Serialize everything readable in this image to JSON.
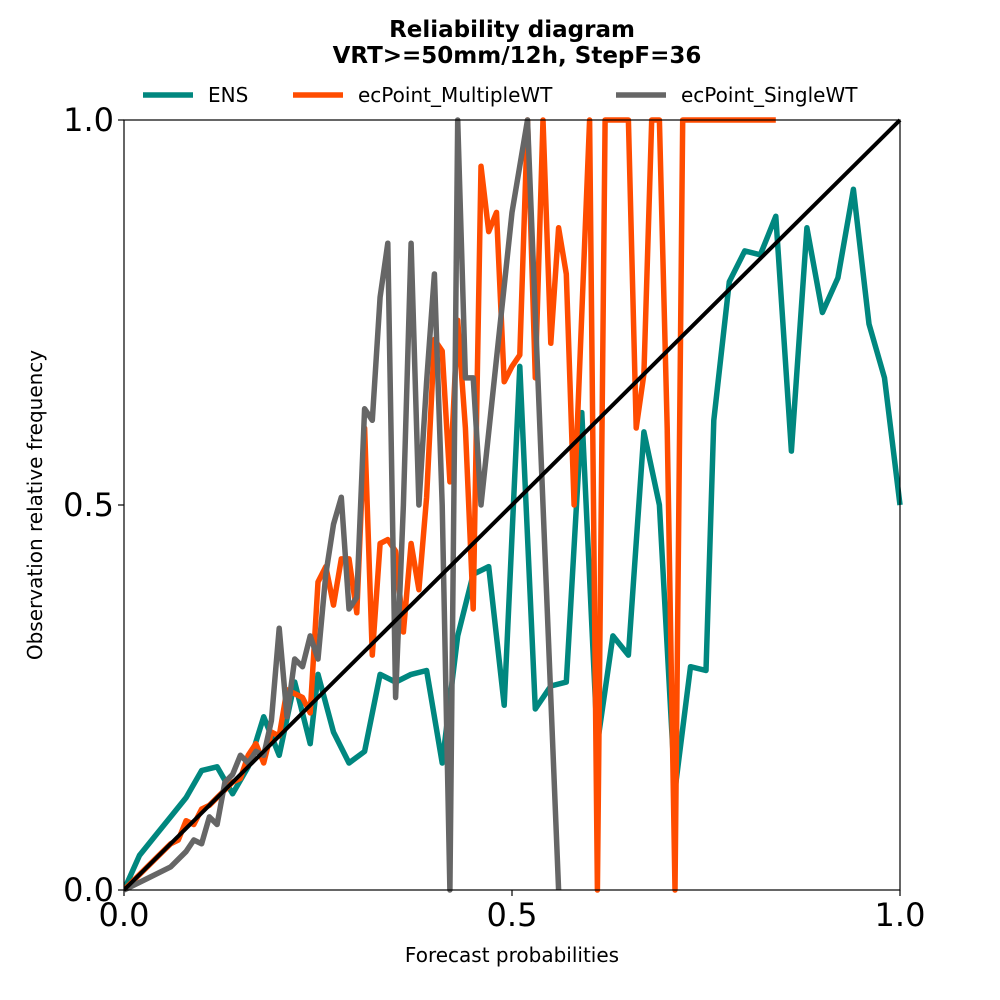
{
  "chart_data": {
    "type": "line",
    "title": "Reliability diagram",
    "subtitle": "VRT>=50mm/12h, StepF=36",
    "xlabel": "Forecast probabilities",
    "ylabel": "Observation relative frequency",
    "xlim": [
      0,
      1
    ],
    "ylim": [
      0,
      1
    ],
    "xticks": [
      "0.0",
      "0.5",
      "1.0"
    ],
    "yticks": [
      "0.0",
      "0.5",
      "1.0"
    ],
    "grid": false,
    "legend_position": "top-center",
    "diagonal": {
      "color": "#000000",
      "from": [
        0,
        0
      ],
      "to": [
        1,
        1
      ]
    },
    "series": [
      {
        "name": "ENS",
        "color": "#00877f",
        "points": [
          [
            0,
            0
          ],
          [
            0.02,
            0.045
          ],
          [
            0.04,
            0.07
          ],
          [
            0.06,
            0.095
          ],
          [
            0.08,
            0.12
          ],
          [
            0.1,
            0.155
          ],
          [
            0.12,
            0.16
          ],
          [
            0.14,
            0.125
          ],
          [
            0.16,
            0.16
          ],
          [
            0.18,
            0.225
          ],
          [
            0.2,
            0.175
          ],
          [
            0.22,
            0.27
          ],
          [
            0.24,
            0.19
          ],
          [
            0.25,
            0.28
          ],
          [
            0.27,
            0.205
          ],
          [
            0.29,
            0.165
          ],
          [
            0.31,
            0.18
          ],
          [
            0.33,
            0.28
          ],
          [
            0.35,
            0.27
          ],
          [
            0.37,
            0.28
          ],
          [
            0.39,
            0.285
          ],
          [
            0.41,
            0.165
          ],
          [
            0.43,
            0.33
          ],
          [
            0.45,
            0.41
          ],
          [
            0.47,
            0.42
          ],
          [
            0.49,
            0.24
          ],
          [
            0.51,
            0.68
          ],
          [
            0.53,
            0.235
          ],
          [
            0.55,
            0.265
          ],
          [
            0.57,
            0.27
          ],
          [
            0.59,
            0.62
          ],
          [
            0.61,
            0.19
          ],
          [
            0.63,
            0.33
          ],
          [
            0.65,
            0.305
          ],
          [
            0.67,
            0.595
          ],
          [
            0.69,
            0.5
          ],
          [
            0.71,
            0.13
          ],
          [
            0.73,
            0.29
          ],
          [
            0.75,
            0.285
          ],
          [
            0.76,
            0.61
          ],
          [
            0.78,
            0.79
          ],
          [
            0.8,
            0.83
          ],
          [
            0.82,
            0.825
          ],
          [
            0.84,
            0.875
          ],
          [
            0.86,
            0.57
          ],
          [
            0.88,
            0.86
          ],
          [
            0.9,
            0.75
          ],
          [
            0.92,
            0.795
          ],
          [
            0.94,
            0.91
          ],
          [
            0.96,
            0.735
          ],
          [
            0.98,
            0.665
          ],
          [
            1.0,
            0.5
          ]
        ]
      },
      {
        "name": "ecPoint_MultipleWT",
        "color": "#ff4c00",
        "points": [
          [
            0,
            0
          ],
          [
            0.02,
            0.02
          ],
          [
            0.04,
            0.04
          ],
          [
            0.06,
            0.06
          ],
          [
            0.07,
            0.065
          ],
          [
            0.08,
            0.09
          ],
          [
            0.09,
            0.085
          ],
          [
            0.1,
            0.105
          ],
          [
            0.11,
            0.11
          ],
          [
            0.12,
            0.12
          ],
          [
            0.13,
            0.13
          ],
          [
            0.14,
            0.14
          ],
          [
            0.15,
            0.145
          ],
          [
            0.16,
            0.175
          ],
          [
            0.17,
            0.19
          ],
          [
            0.18,
            0.165
          ],
          [
            0.19,
            0.205
          ],
          [
            0.2,
            0.2
          ],
          [
            0.21,
            0.26
          ],
          [
            0.22,
            0.255
          ],
          [
            0.23,
            0.25
          ],
          [
            0.24,
            0.23
          ],
          [
            0.25,
            0.4
          ],
          [
            0.26,
            0.42
          ],
          [
            0.27,
            0.37
          ],
          [
            0.28,
            0.43
          ],
          [
            0.29,
            0.43
          ],
          [
            0.3,
            0.36
          ],
          [
            0.31,
            0.6
          ],
          [
            0.32,
            0.305
          ],
          [
            0.33,
            0.45
          ],
          [
            0.34,
            0.455
          ],
          [
            0.35,
            0.44
          ],
          [
            0.36,
            0.335
          ],
          [
            0.37,
            0.45
          ],
          [
            0.38,
            0.39
          ],
          [
            0.39,
            0.51
          ],
          [
            0.4,
            0.715
          ],
          [
            0.41,
            0.7
          ],
          [
            0.42,
            0.53
          ],
          [
            0.43,
            0.74
          ],
          [
            0.44,
            0.6
          ],
          [
            0.45,
            0.365
          ],
          [
            0.46,
            0.94
          ],
          [
            0.47,
            0.855
          ],
          [
            0.48,
            0.88
          ],
          [
            0.49,
            0.66
          ],
          [
            0.5,
            0.68
          ],
          [
            0.51,
            0.695
          ],
          [
            0.52,
            1.0
          ],
          [
            0.53,
            0.665
          ],
          [
            0.54,
            1.0
          ],
          [
            0.55,
            0.71
          ],
          [
            0.56,
            0.86
          ],
          [
            0.57,
            0.8
          ],
          [
            0.58,
            0.5
          ],
          [
            0.6,
            1.0
          ],
          [
            0.61,
            0.0
          ],
          [
            0.62,
            1.0
          ],
          [
            0.64,
            1.0
          ],
          [
            0.65,
            1.0
          ],
          [
            0.66,
            0.6
          ],
          [
            0.67,
            0.67
          ],
          [
            0.68,
            1.0
          ],
          [
            0.69,
            1.0
          ],
          [
            0.7,
            0.6
          ],
          [
            0.71,
            0.0
          ],
          [
            0.72,
            1.0
          ],
          [
            0.84,
            1.0
          ]
        ]
      },
      {
        "name": "ecPoint_SingleWT",
        "color": "#666666",
        "points": [
          [
            0,
            0
          ],
          [
            0.03,
            0.015
          ],
          [
            0.06,
            0.03
          ],
          [
            0.08,
            0.05
          ],
          [
            0.09,
            0.065
          ],
          [
            0.1,
            0.06
          ],
          [
            0.11,
            0.095
          ],
          [
            0.12,
            0.085
          ],
          [
            0.13,
            0.14
          ],
          [
            0.14,
            0.15
          ],
          [
            0.15,
            0.175
          ],
          [
            0.16,
            0.165
          ],
          [
            0.17,
            0.18
          ],
          [
            0.18,
            0.175
          ],
          [
            0.19,
            0.22
          ],
          [
            0.2,
            0.34
          ],
          [
            0.21,
            0.225
          ],
          [
            0.22,
            0.3
          ],
          [
            0.23,
            0.29
          ],
          [
            0.24,
            0.33
          ],
          [
            0.25,
            0.3
          ],
          [
            0.26,
            0.41
          ],
          [
            0.27,
            0.475
          ],
          [
            0.28,
            0.51
          ],
          [
            0.29,
            0.365
          ],
          [
            0.3,
            0.38
          ],
          [
            0.31,
            0.625
          ],
          [
            0.32,
            0.61
          ],
          [
            0.33,
            0.77
          ],
          [
            0.34,
            0.84
          ],
          [
            0.35,
            0.25
          ],
          [
            0.36,
            0.5
          ],
          [
            0.37,
            0.84
          ],
          [
            0.38,
            0.5
          ],
          [
            0.39,
            0.66
          ],
          [
            0.4,
            0.8
          ],
          [
            0.41,
            0.5
          ],
          [
            0.42,
            0.0
          ],
          [
            0.43,
            1.0
          ],
          [
            0.44,
            0.665
          ],
          [
            0.45,
            0.665
          ],
          [
            0.46,
            0.5
          ],
          [
            0.5,
            0.88
          ],
          [
            0.52,
            1.0
          ],
          [
            0.54,
            0.5
          ],
          [
            0.56,
            0.0
          ]
        ]
      }
    ]
  }
}
